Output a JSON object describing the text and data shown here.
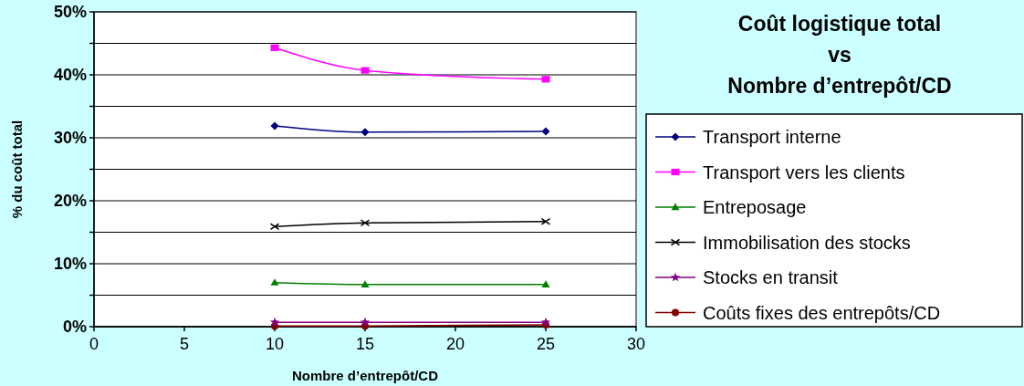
{
  "chart_data": {
    "type": "line",
    "title": "Coût logistique total\nvs\nNombre d’entrepôt/CD",
    "xlabel": "Nombre d’entrepôt/CD",
    "ylabel": "% du coût total",
    "x": [
      10,
      15,
      25
    ],
    "xlim": [
      0,
      30
    ],
    "xticks": [
      0,
      5,
      10,
      15,
      20,
      25,
      30
    ],
    "ylim": [
      0,
      50
    ],
    "yticks": [
      {
        "value": 0,
        "label": "0%"
      },
      {
        "value": 5,
        "label": null
      },
      {
        "value": 10,
        "label": "10%"
      },
      {
        "value": 15,
        "label": null
      },
      {
        "value": 20,
        "label": "20%"
      },
      {
        "value": 25,
        "label": null
      },
      {
        "value": 30,
        "label": "30%"
      },
      {
        "value": 35,
        "label": null
      },
      {
        "value": 40,
        "label": "40%"
      },
      {
        "value": 45,
        "label": null
      },
      {
        "value": 50,
        "label": "50%"
      }
    ],
    "grid": "y",
    "legend": "right",
    "series": [
      {
        "name": "Transport interne",
        "color": "#000080",
        "marker": "diamond",
        "values": [
          31.9,
          30.9,
          31.0
        ]
      },
      {
        "name": "Transport vers les clients",
        "color": "#ff00ff",
        "marker": "square",
        "values": [
          44.3,
          40.7,
          39.3
        ]
      },
      {
        "name": "Entreposage",
        "color": "#008000",
        "marker": "triangle",
        "values": [
          7.0,
          6.7,
          6.7
        ]
      },
      {
        "name": "Immobilisation des stocks",
        "color": "#000000",
        "marker": "cross",
        "values": [
          15.9,
          16.5,
          16.7
        ]
      },
      {
        "name": "Stocks en transit",
        "color": "#800080",
        "marker": "star",
        "values": [
          0.7,
          0.7,
          0.7
        ]
      },
      {
        "name": "Coûts fixes des entrepôts/CD",
        "color": "#800000",
        "marker": "circle",
        "values": [
          0.1,
          0.1,
          0.3
        ]
      }
    ]
  }
}
